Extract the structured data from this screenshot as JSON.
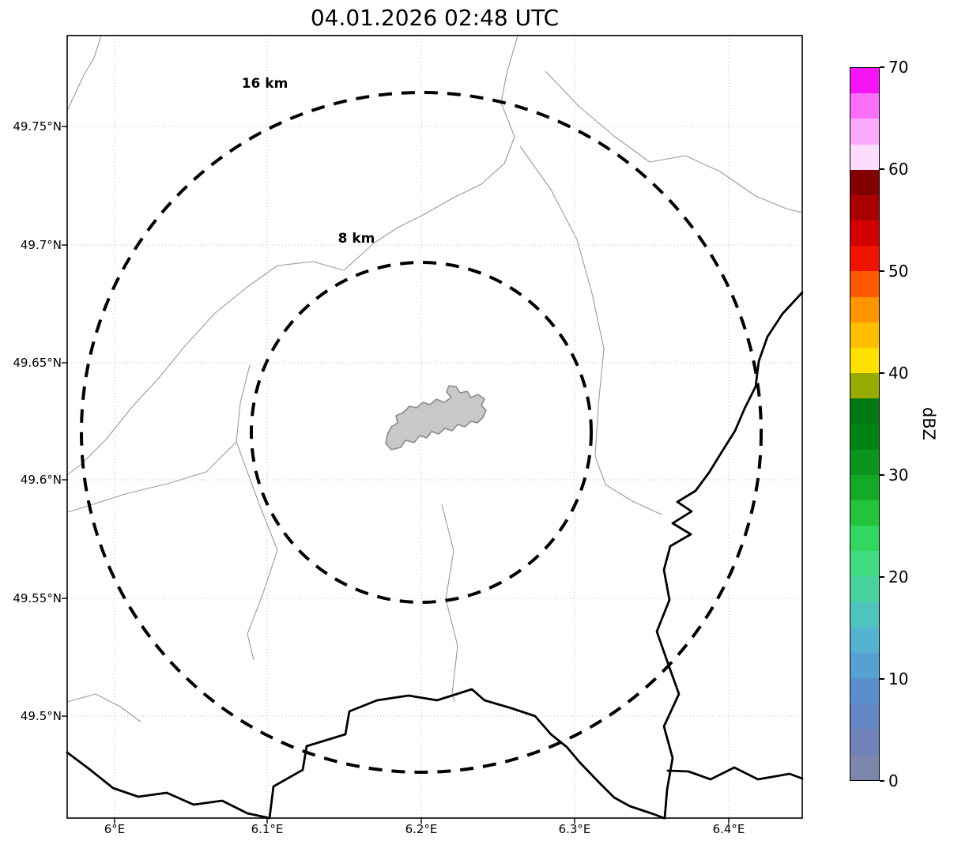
{
  "title": "04.01.2026 02:48 UTC",
  "chart_data": {
    "type": "map",
    "subtype": "weather-radar-range-ring-map",
    "title": "04.01.2026 02:48 UTC",
    "x_axis": {
      "tick_labels": [
        "6°E",
        "6.1°E",
        "6.2°E",
        "6.3°E",
        "6.4°E"
      ],
      "range_deg_east": [
        5.97,
        6.45
      ],
      "grid": "dotted"
    },
    "y_axis": {
      "tick_labels": [
        "49.75°N",
        "49.7°N",
        "49.65°N",
        "49.6°N",
        "49.55°N",
        "49.5°N"
      ],
      "range_deg_north": [
        49.46,
        49.79
      ],
      "grid": "dotted"
    },
    "range_rings": [
      {
        "label": "16 km",
        "radius_km": 16
      },
      {
        "label": "8 km",
        "radius_km": 8
      }
    ],
    "ring_center": {
      "lon_deg_east": 6.2,
      "lat_deg_north": 49.62
    },
    "radar_echoes": "none",
    "map_features": {
      "airport_polygon_fill": "#c8c8c8",
      "airport_polygon_stroke": "#8a8a8a",
      "country_border_color": "#000000",
      "admin_boundary_color": "#9a9a9a",
      "gridline_color": "#bbbbbb"
    },
    "colorbar": {
      "label": "dBZ",
      "min": 0,
      "max": 70,
      "ticks": [
        0,
        10,
        20,
        30,
        40,
        50,
        60,
        70
      ],
      "colors_top_to_bottom": [
        "#f514f5",
        "#fa6efa",
        "#fcaafc",
        "#fedcfe",
        "#820000",
        "#aa0000",
        "#d20000",
        "#f01400",
        "#ff5a00",
        "#ff9600",
        "#ffbe00",
        "#ffe100",
        "#96aa00",
        "#007814",
        "#008214",
        "#0a961e",
        "#14aa28",
        "#23c33c",
        "#32d75f",
        "#3fdc82",
        "#49d2a0",
        "#4fc4bf",
        "#55b2d0",
        "#57a0d2",
        "#5a8fcd",
        "#6386c5",
        "#7082b9",
        "#7d87ad"
      ]
    }
  }
}
